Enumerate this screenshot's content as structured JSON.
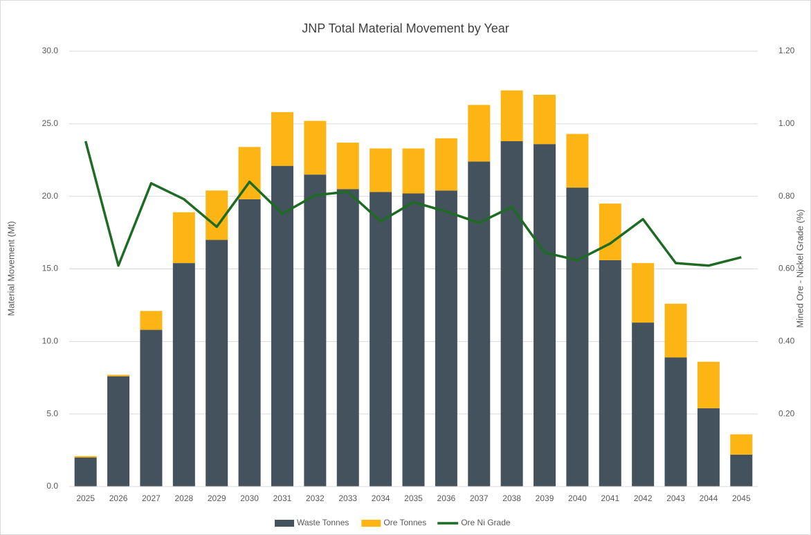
{
  "chart_data": {
    "type": "bar",
    "title": "JNP Total Material Movement by Year",
    "y_label": "Material Movement (Mt)",
    "y2_label": "Mined Ore - Nickel Grade (%)",
    "categories": [
      "2025",
      "2026",
      "2027",
      "2028",
      "2029",
      "2030",
      "2031",
      "2032",
      "2033",
      "2034",
      "2035",
      "2036",
      "2037",
      "2038",
      "2039",
      "2040",
      "2041",
      "2042",
      "2043",
      "2044",
      "2045"
    ],
    "series": [
      {
        "name": "Waste Tonnes",
        "type": "bar",
        "color": "#44525e",
        "values": [
          2.0,
          7.6,
          10.8,
          15.4,
          17.0,
          19.8,
          22.1,
          21.5,
          20.5,
          20.3,
          20.2,
          20.4,
          22.4,
          23.8,
          23.6,
          20.6,
          15.6,
          11.3,
          8.9,
          5.4,
          2.2
        ]
      },
      {
        "name": "Ore Tonnes",
        "type": "bar",
        "color": "#fdb515",
        "values": [
          0.1,
          0.1,
          1.3,
          3.5,
          3.4,
          3.6,
          3.7,
          3.7,
          3.2,
          3.0,
          3.1,
          3.6,
          3.9,
          3.5,
          3.4,
          3.7,
          3.9,
          4.1,
          3.7,
          3.2,
          1.4
        ]
      },
      {
        "name": "Ore Ni Grade",
        "type": "line",
        "axis": "y2",
        "color": "#1e6b23",
        "values": [
          0.952,
          0.609,
          0.836,
          0.792,
          0.716,
          0.84,
          0.752,
          0.803,
          0.813,
          0.731,
          0.784,
          0.758,
          0.727,
          0.771,
          0.645,
          0.624,
          0.67,
          0.737,
          0.616,
          0.609,
          0.632
        ]
      }
    ],
    "stacked": true,
    "ylim": [
      0,
      30
    ],
    "yticks": [
      {
        "value": 0,
        "label": "0.0"
      },
      {
        "value": 5,
        "label": "5.0"
      },
      {
        "value": 10,
        "label": "10.0"
      },
      {
        "value": 15,
        "label": "15.0"
      },
      {
        "value": 20,
        "label": "20.0"
      },
      {
        "value": 25,
        "label": "25.0"
      },
      {
        "value": 30,
        "label": "30.0"
      }
    ],
    "y2lim": [
      0,
      1.2
    ],
    "y2ticks": [
      {
        "value": 0.2,
        "label": "0.20"
      },
      {
        "value": 0.4,
        "label": "0.40"
      },
      {
        "value": 0.6,
        "label": "0.60"
      },
      {
        "value": 0.8,
        "label": "0.80"
      },
      {
        "value": 1.0,
        "label": "1.00"
      },
      {
        "value": 1.2,
        "label": "1.20"
      }
    ],
    "grid": true,
    "legend": "bottom"
  }
}
